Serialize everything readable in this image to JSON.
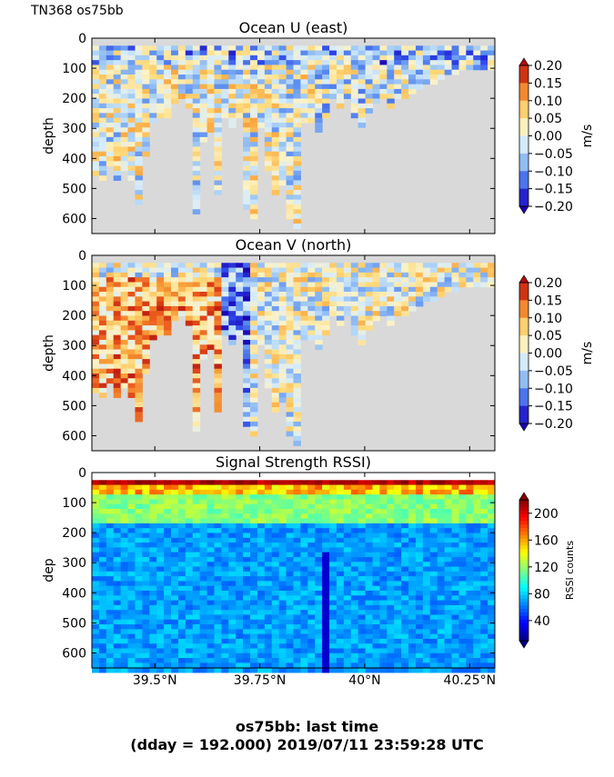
{
  "header": {
    "label": "TN368 os75bb"
  },
  "footer": {
    "line1": "os75bb: last time",
    "line2": "(dday = 192.000) 2019/07/11 23:59:28 UTC"
  },
  "colors": {
    "background_fill": "#d9d9d9",
    "jet": [
      "#00007f",
      "#0000ff",
      "#007fff",
      "#00ffff",
      "#7fff7f",
      "#ffff00",
      "#ff7f00",
      "#ff0000",
      "#7f0000"
    ],
    "diverging": [
      "#1a00b0",
      "#2b3fe6",
      "#5a8cf0",
      "#9ec8f5",
      "#d6ecfb",
      "#fdf2c4",
      "#ffd97a",
      "#f9a23a",
      "#e8501a",
      "#b00d0d"
    ]
  },
  "chart_data": [
    {
      "type": "heatmap",
      "title": "Ocean U (east)",
      "ylabel": "depth",
      "ylim": [
        650,
        0
      ],
      "yticks": [
        "0",
        "100",
        "200",
        "300",
        "400",
        "500",
        "600"
      ],
      "xlim": [
        39.35,
        40.31
      ],
      "colorbar": {
        "label": "m/s",
        "range": [
          -0.2,
          0.2
        ],
        "ticks": [
          "0.20",
          "0.15",
          "0.10",
          "0.05",
          "0.00",
          "−0.05",
          "−0.10",
          "−0.15",
          "−0.20"
        ]
      },
      "bottom_depth_m": [
        450,
        470,
        420,
        470,
        430,
        460,
        540,
        380,
        270,
        260,
        250,
        210,
        190,
        230,
        580,
        330,
        300,
        520,
        260,
        290,
        250,
        560,
        590,
        290,
        430,
        520,
        480,
        600,
        620,
        280,
        270,
        300,
        250,
        200,
        220,
        190,
        260,
        290,
        240,
        210,
        200,
        230,
        200,
        190,
        170,
        160,
        150,
        140,
        130,
        120,
        110,
        105,
        100,
        100,
        100,
        95
      ]
    },
    {
      "type": "heatmap",
      "title": "Ocean V (north)",
      "ylabel": "depth",
      "ylim": [
        650,
        0
      ],
      "yticks": [
        "0",
        "100",
        "200",
        "300",
        "400",
        "500",
        "600"
      ],
      "xlim": [
        39.35,
        40.31
      ],
      "colorbar": {
        "label": "m/s",
        "range": [
          -0.2,
          0.2
        ],
        "ticks": [
          "0.20",
          "0.15",
          "0.10",
          "0.05",
          "0.00",
          "−0.05",
          "−0.10",
          "−0.15",
          "−0.20"
        ]
      }
    },
    {
      "type": "heatmap",
      "title": "Signal Strength RSSI)",
      "ylabel": "dep",
      "ylim": [
        650,
        0
      ],
      "yticks": [
        "0",
        "100",
        "200",
        "300",
        "400",
        "500",
        "600"
      ],
      "xlim": [
        39.35,
        40.31
      ],
      "xticks": [
        {
          "value": 39.5,
          "label": "39.5°N"
        },
        {
          "value": 39.75,
          "label": "39.75°N"
        },
        {
          "value": 40.0,
          "label": "40°N"
        },
        {
          "value": 40.25,
          "label": "40.25°N"
        }
      ],
      "colorbar": {
        "label": "RSSI counts",
        "range": [
          10,
          220
        ],
        "ticks": [
          "200",
          "160",
          "120",
          "80",
          "40"
        ]
      }
    }
  ]
}
